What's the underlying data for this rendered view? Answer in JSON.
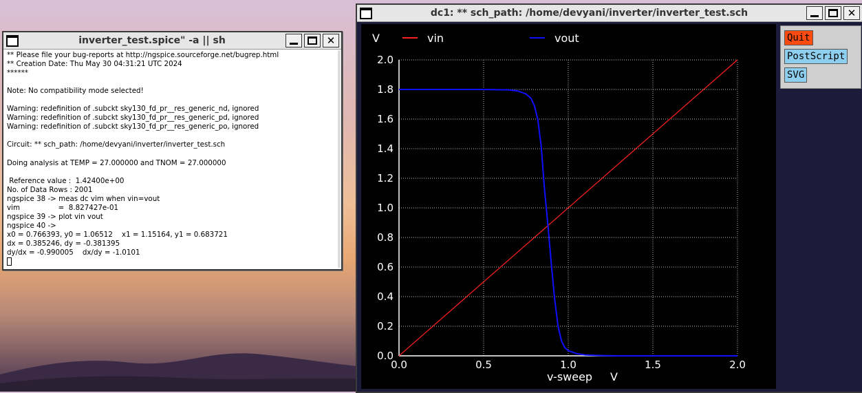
{
  "terminal": {
    "title": "inverter_test.spice\" -a || sh",
    "lines": [
      "** Please file your bug-reports at http://ngspice.sourceforge.net/bugrep.html",
      "** Creation Date: Thu May 30 04:31:21 UTC 2024",
      "******",
      "",
      "Note: No compatibility mode selected!",
      "",
      "Warning: redefinition of .subckt sky130_fd_pr__res_generic_nd, ignored",
      "Warning: redefinition of .subckt sky130_fd_pr__res_generic_pd, ignored",
      "Warning: redefinition of .subckt sky130_fd_pr__res_generic_po, ignored",
      "",
      "Circuit: ** sch_path: /home/devyani/inverter/inverter_test.sch",
      "",
      "Doing analysis at TEMP = 27.000000 and TNOM = 27.000000",
      "",
      " Reference value :  1.42400e+00",
      "No. of Data Rows : 2001",
      "ngspice 38 -> meas dc vim when vin=vout",
      "vim                 =  8.827427e-01",
      "ngspice 39 -> plot vin vout",
      "ngspice 40 ->",
      "x0 = 0.766393, y0 = 1.06512    x1 = 1.15164, y1 = 0.683721",
      "dx = 0.385246, dy = -0.381395",
      "dy/dx = -0.990005    dx/dy = -1.0101"
    ]
  },
  "plot_window": {
    "title": "dc1: ** sch_path: /home/devyani/inverter/inverter_test.sch",
    "buttons": {
      "quit": "Quit",
      "postscript": "PostScript",
      "svg": "SVG"
    }
  },
  "window_controls": {
    "close_glyph": "✕"
  },
  "chart_data": {
    "type": "line",
    "ylabel": "V",
    "xlabel": "v-sweep",
    "xunit": "V",
    "xlim": [
      0,
      2
    ],
    "ylim": [
      0,
      2
    ],
    "xticks": [
      "0.0",
      "0.5",
      "1.0",
      "1.5",
      "2.0"
    ],
    "yticks": [
      "0.0",
      "0.2",
      "0.4",
      "0.6",
      "0.8",
      "1.0",
      "1.2",
      "1.4",
      "1.6",
      "1.8",
      "2.0"
    ],
    "grid": true,
    "legend_placement": "top",
    "series": [
      {
        "name": "vin",
        "color": "#ff2020",
        "x": [
          0,
          2
        ],
        "y": [
          0,
          2
        ]
      },
      {
        "name": "vout",
        "color": "#1010ff",
        "x": [
          0,
          0.5,
          0.65,
          0.7,
          0.75,
          0.78,
          0.8,
          0.82,
          0.84,
          0.86,
          0.88,
          0.9,
          0.92,
          0.94,
          0.96,
          0.98,
          1.0,
          1.05,
          1.1,
          1.2,
          1.3,
          2.0
        ],
        "y": [
          1.8,
          1.8,
          1.797,
          1.79,
          1.77,
          1.74,
          1.69,
          1.6,
          1.42,
          1.12,
          0.88,
          0.62,
          0.38,
          0.2,
          0.1,
          0.055,
          0.035,
          0.015,
          0.006,
          0.002,
          0.0,
          0.0
        ]
      }
    ]
  }
}
